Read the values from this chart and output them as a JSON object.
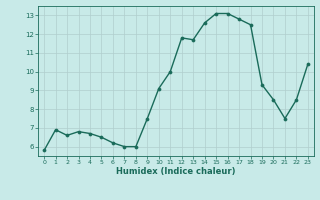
{
  "x": [
    0,
    1,
    2,
    3,
    4,
    5,
    6,
    7,
    8,
    9,
    10,
    11,
    12,
    13,
    14,
    15,
    16,
    17,
    18,
    19,
    20,
    21,
    22,
    23
  ],
  "y": [
    5.8,
    6.9,
    6.6,
    6.8,
    6.7,
    6.5,
    6.2,
    6.0,
    6.0,
    7.5,
    9.1,
    10.0,
    11.8,
    11.7,
    12.6,
    13.1,
    13.1,
    12.8,
    12.5,
    9.3,
    8.5,
    7.5,
    8.5,
    10.4
  ],
  "xlim": [
    -0.5,
    23.5
  ],
  "ylim": [
    5.5,
    13.5
  ],
  "yticks": [
    6,
    7,
    8,
    9,
    10,
    11,
    12,
    13
  ],
  "xticks": [
    0,
    1,
    2,
    3,
    4,
    5,
    6,
    7,
    8,
    9,
    10,
    11,
    12,
    13,
    14,
    15,
    16,
    17,
    18,
    19,
    20,
    21,
    22,
    23
  ],
  "xlabel": "Humidex (Indice chaleur)",
  "line_color": "#1a6b5a",
  "marker_color": "#1a6b5a",
  "bg_color": "#c8eae8",
  "grid_color": "#b0cece",
  "axis_color": "#1a6b5a",
  "tick_color": "#1a6b5a",
  "label_color": "#1a6b5a",
  "marker_size": 2.2,
  "line_width": 1.0
}
